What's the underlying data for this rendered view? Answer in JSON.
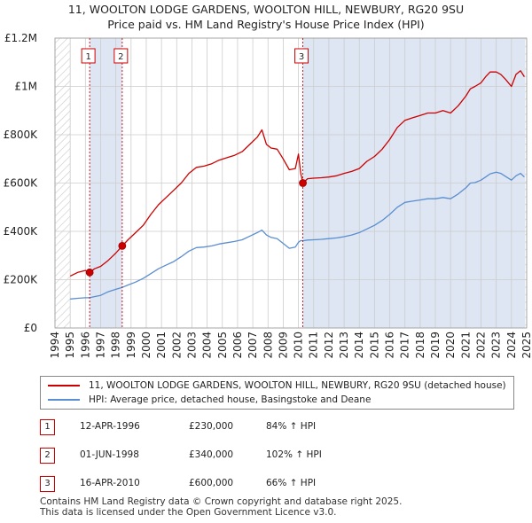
{
  "title": {
    "line1": "11, WOOLTON LODGE GARDENS, WOOLTON HILL, NEWBURY, RG20 9SU",
    "line2": "Price paid vs. HM Land Registry's House Price Index (HPI)"
  },
  "colors": {
    "property": "#cc0000",
    "hpi": "#5b8ed0",
    "shade": "#dde6f2",
    "grid": "#cccccc",
    "marker_line": "#cc0000"
  },
  "chart_data": {
    "type": "line",
    "xlim": [
      1994,
      2025
    ],
    "ylim": [
      0,
      1200000
    ],
    "x_ticks": [
      "1994",
      "1995",
      "1996",
      "1997",
      "1998",
      "1999",
      "2000",
      "2001",
      "2002",
      "2003",
      "2004",
      "2005",
      "2006",
      "2007",
      "2008",
      "2009",
      "2010",
      "2011",
      "2012",
      "2013",
      "2014",
      "2015",
      "2016",
      "2017",
      "2018",
      "2019",
      "2020",
      "2021",
      "2022",
      "2023",
      "2024",
      "2025"
    ],
    "y_ticks": [
      {
        "value": 0,
        "label": "£0"
      },
      {
        "value": 200000,
        "label": "£200K"
      },
      {
        "value": 400000,
        "label": "£400K"
      },
      {
        "value": 600000,
        "label": "£600K"
      },
      {
        "value": 800000,
        "label": "£800K"
      },
      {
        "value": 1000000,
        "label": "£1M"
      },
      {
        "value": 1200000,
        "label": "£1.2M"
      }
    ],
    "hatched_ranges": [
      [
        1994,
        1995.0
      ],
      [
        2024.9,
        2025
      ]
    ],
    "series": [
      {
        "name": "11, WOOLTON LODGE GARDENS, WOOLTON HILL, NEWBURY, RG20 9SU (detached house)",
        "color": "#cc0000",
        "x": [
          1995.0,
          1995.5,
          1996.0,
          1996.28,
          1996.6,
          1997.0,
          1997.5,
          1998.0,
          1998.42,
          1998.8,
          1999.3,
          1999.8,
          2000.3,
          2000.8,
          2001.3,
          2001.8,
          2002.3,
          2002.8,
          2003.3,
          2003.8,
          2004.3,
          2004.8,
          2005.3,
          2005.8,
          2006.3,
          2006.8,
          2007.3,
          2007.6,
          2007.9,
          2008.2,
          2008.6,
          2009.0,
          2009.4,
          2009.8,
          2010.0,
          2010.15,
          2010.29,
          2010.6,
          2011.0,
          2011.5,
          2012.0,
          2012.5,
          2013.0,
          2013.5,
          2014.0,
          2014.5,
          2015.0,
          2015.5,
          2016.0,
          2016.5,
          2017.0,
          2017.5,
          2018.0,
          2018.5,
          2019.0,
          2019.5,
          2020.0,
          2020.5,
          2021.0,
          2021.3,
          2021.6,
          2022.0,
          2022.3,
          2022.6,
          2023.0,
          2023.3,
          2023.6,
          2024.0,
          2024.3,
          2024.6,
          2024.85
        ],
        "y": [
          215000,
          230000,
          238000,
          230000,
          245000,
          255000,
          280000,
          310000,
          340000,
          365000,
          395000,
          425000,
          470000,
          510000,
          540000,
          570000,
          600000,
          640000,
          665000,
          670000,
          680000,
          695000,
          705000,
          715000,
          730000,
          760000,
          790000,
          820000,
          760000,
          745000,
          740000,
          700000,
          655000,
          660000,
          720000,
          640000,
          600000,
          618000,
          620000,
          622000,
          625000,
          630000,
          640000,
          648000,
          660000,
          690000,
          710000,
          740000,
          780000,
          830000,
          860000,
          870000,
          880000,
          890000,
          890000,
          900000,
          890000,
          920000,
          960000,
          990000,
          1000000,
          1015000,
          1040000,
          1060000,
          1060000,
          1050000,
          1030000,
          1000000,
          1050000,
          1065000,
          1040000
        ]
      },
      {
        "name": "HPI: Average price, detached house, Basingstoke and Deane",
        "color": "#5b8ed0",
        "x": [
          1995.0,
          1995.5,
          1996.0,
          1996.28,
          1996.6,
          1997.0,
          1997.5,
          1998.0,
          1998.42,
          1998.8,
          1999.3,
          1999.8,
          2000.3,
          2000.8,
          2001.3,
          2001.8,
          2002.3,
          2002.8,
          2003.3,
          2003.8,
          2004.3,
          2004.8,
          2005.3,
          2005.8,
          2006.3,
          2006.8,
          2007.3,
          2007.6,
          2007.9,
          2008.2,
          2008.6,
          2009.0,
          2009.4,
          2009.8,
          2010.0,
          2010.15,
          2010.29,
          2010.6,
          2011.0,
          2011.5,
          2012.0,
          2012.5,
          2013.0,
          2013.5,
          2014.0,
          2014.5,
          2015.0,
          2015.5,
          2016.0,
          2016.5,
          2017.0,
          2017.5,
          2018.0,
          2018.5,
          2019.0,
          2019.5,
          2020.0,
          2020.5,
          2021.0,
          2021.3,
          2021.6,
          2022.0,
          2022.3,
          2022.6,
          2023.0,
          2023.3,
          2023.6,
          2024.0,
          2024.3,
          2024.6,
          2024.85
        ],
        "y": [
          120000,
          123000,
          125000,
          125000,
          130000,
          135000,
          150000,
          160000,
          168000,
          178000,
          190000,
          205000,
          225000,
          245000,
          260000,
          275000,
          295000,
          318000,
          333000,
          335000,
          340000,
          348000,
          353000,
          358000,
          365000,
          380000,
          395000,
          405000,
          385000,
          375000,
          370000,
          350000,
          330000,
          335000,
          355000,
          362000,
          361000,
          364000,
          365000,
          367000,
          370000,
          373000,
          378000,
          385000,
          395000,
          410000,
          425000,
          445000,
          470000,
          500000,
          520000,
          525000,
          530000,
          535000,
          535000,
          540000,
          535000,
          555000,
          580000,
          600000,
          602000,
          612000,
          625000,
          638000,
          645000,
          640000,
          628000,
          612000,
          630000,
          640000,
          625000
        ]
      }
    ],
    "sales": [
      {
        "label": "1",
        "x": 1996.28,
        "price": 230000,
        "date": "12-APR-1996",
        "price_text": "£230,000",
        "hpi_text": "84% ↑ HPI"
      },
      {
        "label": "2",
        "x": 1998.42,
        "price": 340000,
        "date": "01-JUN-1998",
        "price_text": "£340,000",
        "hpi_text": "102% ↑ HPI"
      },
      {
        "label": "3",
        "x": 2010.29,
        "price": 600000,
        "date": "16-APR-2010",
        "price_text": "£600,000",
        "hpi_text": "66% ↑ HPI"
      }
    ]
  },
  "legend": {
    "property": "11, WOOLTON LODGE GARDENS, WOOLTON HILL, NEWBURY, RG20 9SU (detached house)",
    "hpi": "HPI: Average price, detached house, Basingstoke and Deane"
  },
  "footer": {
    "line1": "Contains HM Land Registry data © Crown copyright and database right 2025.",
    "line2": "This data is licensed under the Open Government Licence v3.0."
  }
}
